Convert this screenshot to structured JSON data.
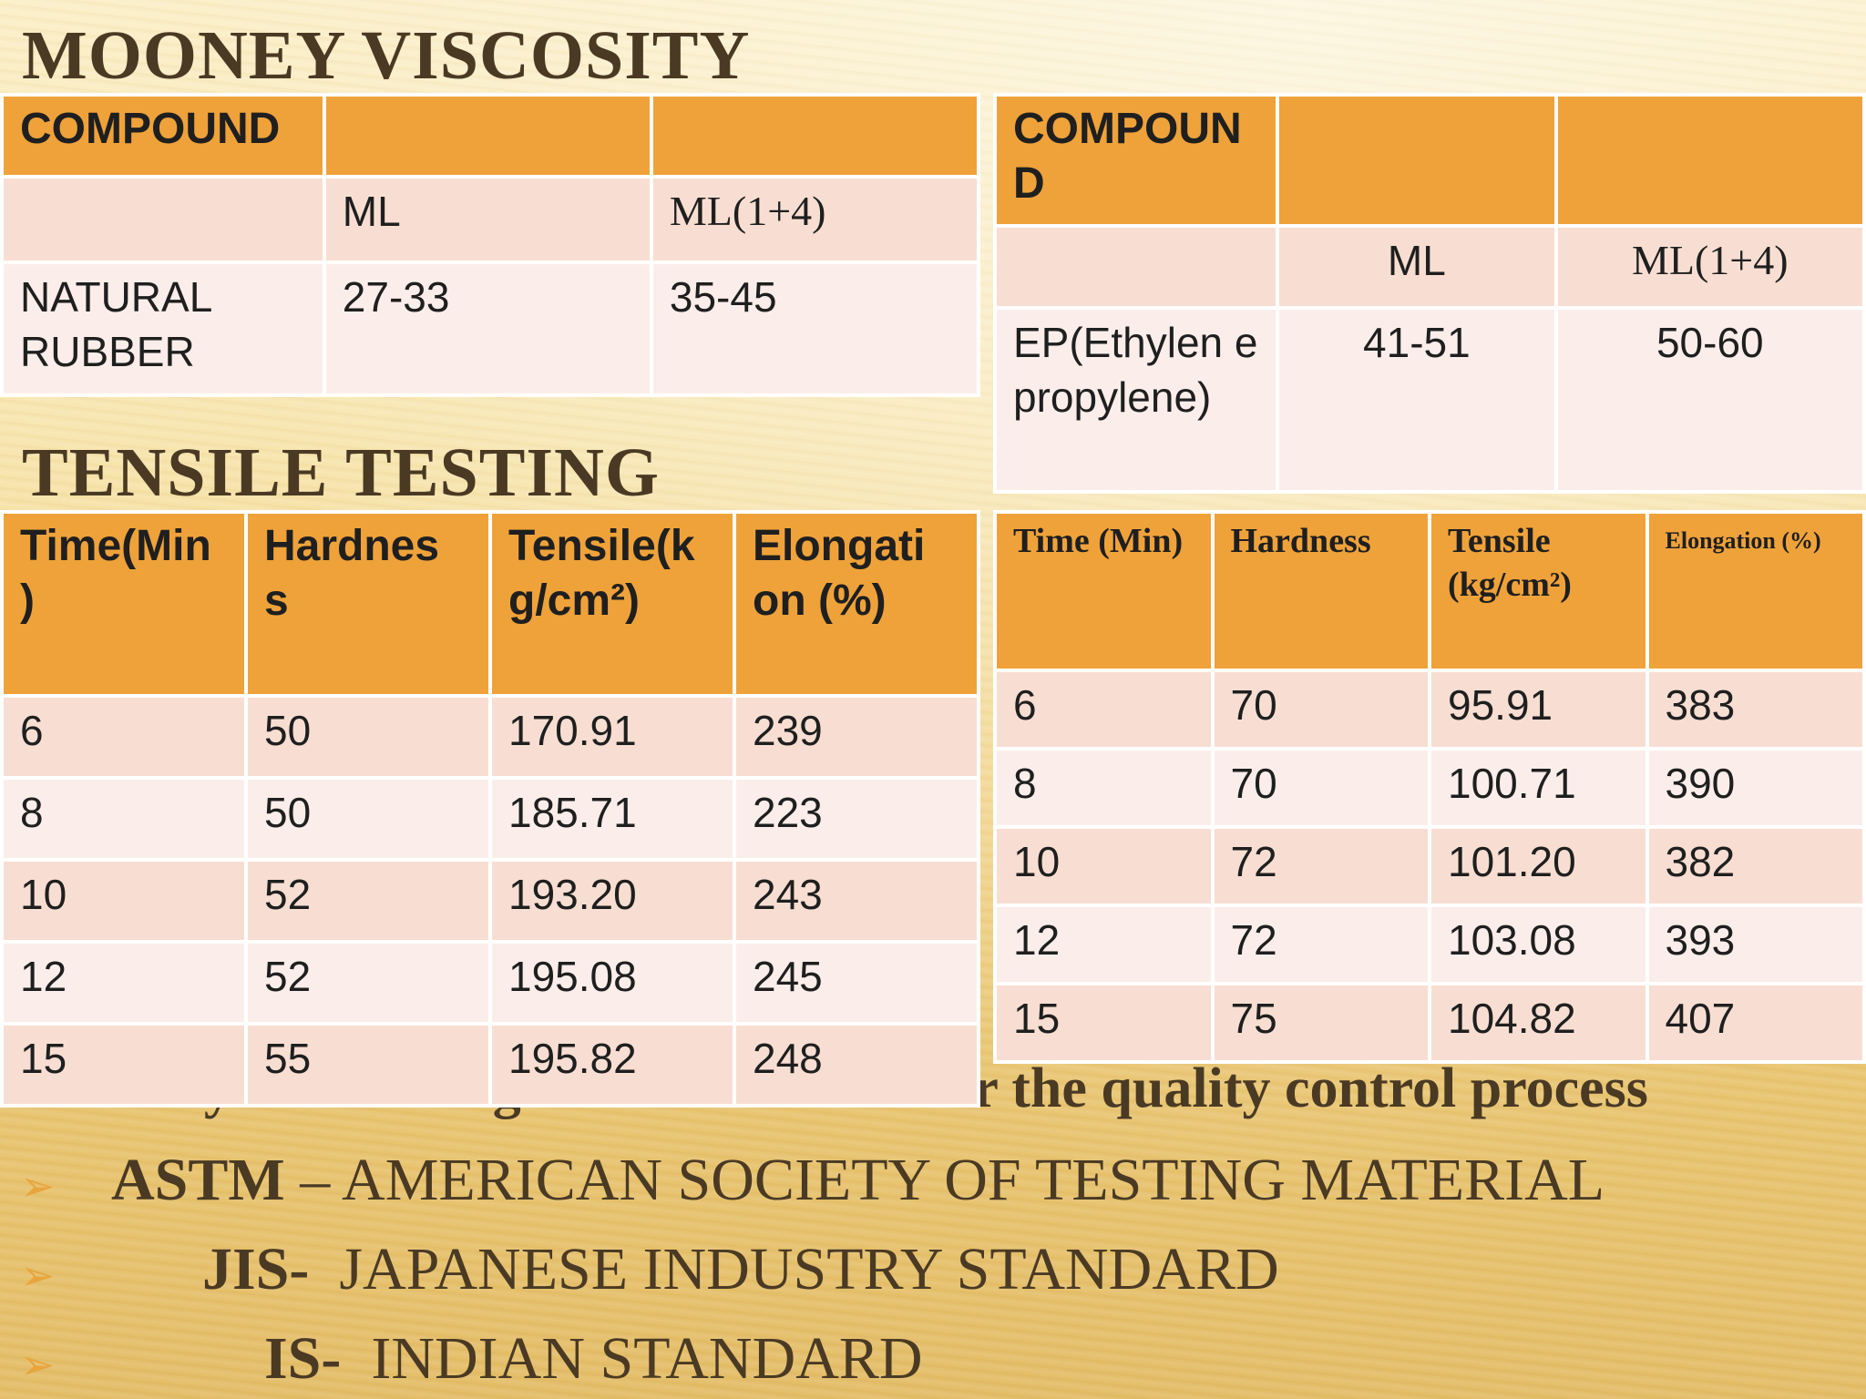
{
  "mooney": {
    "heading": "MOONEY VISCOSITY",
    "left": {
      "header": "COMPOUND",
      "subheader": [
        "ML",
        "ML(1+4)"
      ],
      "row": {
        "compound": "NATURAL RUBBER",
        "ml": "27-33",
        "ml14": "35-45"
      }
    },
    "right": {
      "header": "COMPOUN D",
      "subheader": [
        "ML",
        "ML(1+4)"
      ],
      "row": {
        "compound": "EP(Ethylen e propylene)",
        "ml": "41-51",
        "ml14": "50-60"
      }
    }
  },
  "tensile": {
    "heading": "TENSILE TESTING",
    "left": {
      "columns": [
        "Time(Min )",
        "Hardnes s",
        "Tensile(k g/cm²)",
        "Elongati on (%)"
      ],
      "rows": [
        [
          "6",
          "50",
          "170.91",
          "239"
        ],
        [
          "8",
          "50",
          "185.71",
          "223"
        ],
        [
          "10",
          "52",
          "193.20",
          "243"
        ],
        [
          "12",
          "52",
          "195.08",
          "245"
        ],
        [
          "15",
          "55",
          "195.82",
          "248"
        ]
      ]
    },
    "right": {
      "columns": [
        "Time (Min)",
        "Hardness",
        "Tensile (kg/cm²)",
        "Elongation (%)"
      ],
      "rows": [
        [
          "6",
          "70",
          "95.91",
          "383"
        ],
        [
          "8",
          "70",
          "100.71",
          "390"
        ],
        [
          "10",
          "72",
          "101.20",
          "382"
        ],
        [
          "12",
          "72",
          "103.08",
          "393"
        ],
        [
          "15",
          "75",
          "104.82",
          "407"
        ]
      ]
    }
  },
  "standards": {
    "intro": "Industry is following three standards for the quality control process",
    "bullet_glyph": "➢",
    "items": [
      {
        "abbr": "ASTM",
        "sep": " – ",
        "name": "AMERICAN SOCIETY OF TESTING MATERIAL"
      },
      {
        "abbr": "JIS-",
        "sep": "  ",
        "name": "JAPANESE INDUSTRY STANDARD"
      },
      {
        "abbr": "IS-",
        "sep": "  ",
        "name": "INDIAN STANDARD"
      }
    ]
  },
  "colors": {
    "header_orange": "#efa23a",
    "row_odd": "#f8ded2",
    "row_even": "#fbeeea",
    "heading_brown": "#4a3a24"
  }
}
